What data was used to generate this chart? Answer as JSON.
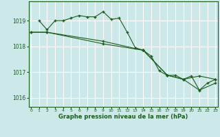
{
  "title": "Graphe pression niveau de la mer (hPa)",
  "bg_color": "#cce8e8",
  "grid_color": "#ffffff",
  "line_color": "#1a5c1a",
  "ylim": [
    1015.65,
    1019.75
  ],
  "xlim": [
    -0.3,
    23.3
  ],
  "yticks": [
    1016,
    1017,
    1018,
    1019
  ],
  "xtick_labels": [
    "0",
    "1",
    "2",
    "3",
    "4",
    "5",
    "6",
    "7",
    "8",
    "9",
    "10",
    "11",
    "12",
    "13",
    "14",
    "15",
    "16",
    "17",
    "18",
    "19",
    "20",
    "21",
    "22",
    "23"
  ],
  "xtick_positions": [
    0,
    1,
    2,
    3,
    4,
    5,
    6,
    7,
    8,
    9,
    10,
    11,
    12,
    13,
    14,
    15,
    16,
    17,
    18,
    19,
    20,
    21,
    22,
    23
  ],
  "series": [
    {
      "x": [
        1,
        2,
        3,
        4,
        5,
        6,
        7,
        8,
        9,
        10,
        11,
        12,
        13,
        14,
        15,
        16,
        17,
        18,
        19,
        20,
        21,
        22,
        23
      ],
      "y": [
        1019.0,
        1018.65,
        1019.0,
        1019.0,
        1019.1,
        1019.2,
        1019.15,
        1019.15,
        1019.35,
        1019.05,
        1019.1,
        1018.55,
        1017.95,
        1017.85,
        1017.62,
        1017.05,
        1016.87,
        1016.88,
        1016.72,
        1016.85,
        1016.3,
        1016.57,
        1016.72
      ]
    },
    {
      "x": [
        0,
        2,
        9,
        14,
        17,
        19,
        21,
        23
      ],
      "y": [
        1018.55,
        1018.55,
        1018.2,
        1017.85,
        1016.88,
        1016.72,
        1016.85,
        1016.72
      ]
    },
    {
      "x": [
        0,
        2,
        9,
        14,
        17,
        19,
        21,
        23
      ],
      "y": [
        1018.55,
        1018.55,
        1018.1,
        1017.85,
        1016.88,
        1016.72,
        1016.3,
        1016.57
      ]
    }
  ]
}
